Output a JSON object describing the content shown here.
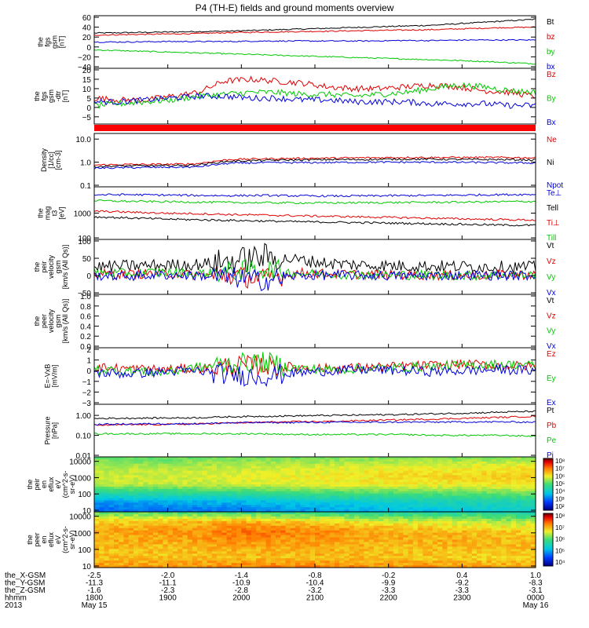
{
  "title": "P4 (TH-E) fields and ground moments overview",
  "time_axis": {
    "rows": [
      {
        "label": "the_X-GSM",
        "values": [
          "-2.5",
          "-2.0",
          "-1.4",
          "-0.8",
          "-0.2",
          "0.4",
          "1.0"
        ]
      },
      {
        "label": "the_Y-GSM",
        "values": [
          "-11.3",
          "-11.1",
          "-10.9",
          "-10.4",
          "-9.9",
          "-9.2",
          "-8.3"
        ]
      },
      {
        "label": "the_Z-GSM",
        "values": [
          "-1.6",
          "-2.3",
          "-2.8",
          "-3.2",
          "-3.3",
          "-3.3",
          "-3.1"
        ]
      },
      {
        "label": "hhmm",
        "values": [
          "1800",
          "1900",
          "2000",
          "2100",
          "2200",
          "2300",
          "0000"
        ]
      }
    ],
    "year": "2013",
    "date_start": "May 15",
    "date_end": "May 16"
  },
  "colors": {
    "black": "#000000",
    "red": "#e00000",
    "green": "#00c800",
    "blue": "#0000dc",
    "status_bar": "#ff0000"
  },
  "chart_data": [
    {
      "type": "line",
      "panel": "fgs-gsm",
      "ylabel": [
        "the",
        "fgs",
        "gsm",
        "[nT]"
      ],
      "ylim": [
        -40,
        60
      ],
      "scale": "linear",
      "ticks": [
        "60",
        "40",
        "20",
        "0",
        "−20",
        "−40"
      ],
      "tick_values": [
        60,
        40,
        20,
        0,
        -20,
        -40
      ],
      "series": [
        {
          "name": "Bt",
          "color": "#000000",
          "values": [
            28,
            29,
            30,
            31,
            32,
            34,
            36,
            38,
            40,
            42,
            44,
            48,
            52,
            56
          ]
        },
        {
          "name": "bz",
          "color": "#e00000",
          "values": [
            24,
            25,
            26,
            27,
            29,
            30,
            31,
            32,
            33,
            34,
            35,
            37,
            39,
            40
          ]
        },
        {
          "name": "by",
          "color": "#00c800",
          "values": [
            -6,
            -8,
            -10,
            -12,
            -14,
            -16,
            -18,
            -20,
            -22,
            -24,
            -26,
            -28,
            -31,
            -34
          ]
        },
        {
          "name": "bx",
          "color": "#0000dc",
          "values": [
            10,
            10,
            11,
            11,
            11,
            12,
            12,
            12,
            12,
            13,
            13,
            14,
            14,
            14
          ]
        }
      ]
    },
    {
      "type": "line",
      "panel": "fgs-gsm-detrended",
      "ylabel": [
        "the",
        "fgs",
        "gsm",
        "-dtr",
        "[nT]"
      ],
      "ylim": [
        -8,
        20
      ],
      "scale": "linear",
      "ticks": [
        "20",
        "15",
        "10",
        "5",
        "0",
        "−5"
      ],
      "tick_values": [
        20,
        15,
        10,
        5,
        0,
        -5
      ],
      "series": [
        {
          "name": "Bz",
          "color": "#e00000",
          "values": [
            5,
            4,
            4,
            6,
            8,
            14,
            15,
            14,
            13,
            11,
            10,
            10,
            11,
            12,
            11,
            9,
            8,
            6
          ]
        },
        {
          "name": "By",
          "color": "#00c800",
          "values": [
            1,
            2,
            3,
            4,
            6,
            7,
            8,
            8,
            7,
            7,
            6,
            7,
            8,
            10,
            12,
            11,
            9,
            8
          ]
        },
        {
          "name": "Bx",
          "color": "#0000dc",
          "values": [
            3,
            3,
            4,
            5,
            6,
            6,
            5,
            5,
            4,
            4,
            3,
            3,
            3,
            2,
            2,
            2,
            1,
            1
          ]
        }
      ]
    },
    {
      "type": "line",
      "panel": "density",
      "ylabel": [
        "Density",
        "[1/cc]",
        "[cm-3]"
      ],
      "ylim": [
        0.1,
        15
      ],
      "scale": "log",
      "ticks": [
        "10.0",
        "1.0",
        "0.1"
      ],
      "tick_values": [
        10,
        1,
        0.1
      ],
      "series": [
        {
          "name": "Ne",
          "color": "#e00000",
          "values": [
            0.75,
            0.8,
            0.8,
            0.85,
            1.3,
            1.4,
            1.45,
            1.5,
            1.55,
            1.6,
            1.6,
            1.6,
            1.6,
            1.55
          ]
        },
        {
          "name": "Ni",
          "color": "#000000",
          "values": [
            0.65,
            0.7,
            0.7,
            0.75,
            1.1,
            1.2,
            1.25,
            1.3,
            1.3,
            1.35,
            1.35,
            1.3,
            1.3,
            1.25
          ]
        },
        {
          "name": "Npot",
          "color": "#0000dc",
          "values": [
            0.55,
            0.58,
            0.6,
            0.62,
            0.9,
            0.95,
            0.95,
            0.97,
            1.0,
            1.0,
            1.0,
            0.98,
            0.95,
            0.92
          ]
        }
      ]
    },
    {
      "type": "line",
      "panel": "temperature",
      "ylabel": [
        "the",
        "mag",
        "t3",
        "[eV]"
      ],
      "ylim": [
        100,
        10000
      ],
      "scale": "log",
      "ticks": [
        "1000",
        "100"
      ],
      "tick_values": [
        1000,
        100
      ],
      "series": [
        {
          "name": "Te⊥",
          "color": "#0000dc",
          "values": [
            5500,
            5600,
            5400,
            5200,
            5100,
            5200,
            5000,
            4900,
            5000,
            5100,
            5200,
            5400,
            5600,
            5700
          ]
        },
        {
          "name": "Tell",
          "color": "#000000",
          "values": [
            700,
            640,
            580,
            540,
            510,
            480,
            450,
            430,
            410,
            390,
            370,
            350,
            330,
            320
          ]
        },
        {
          "name": "Ti⊥",
          "color": "#e00000",
          "values": [
            1200,
            1100,
            1000,
            950,
            880,
            830,
            780,
            740,
            700,
            660,
            620,
            580,
            550,
            520
          ]
        },
        {
          "name": "Till",
          "color": "#00c800",
          "values": [
            3200,
            3000,
            2900,
            2800,
            2700,
            2650,
            2600,
            2600,
            2650,
            2700,
            2750,
            2800,
            2900,
            3000
          ]
        }
      ]
    },
    {
      "type": "line",
      "panel": "peir-velocity",
      "ylabel": [
        "the",
        "peir",
        "velocity",
        "gsm",
        "[km/s (All Qs)]"
      ],
      "ylim": [
        -50,
        100
      ],
      "scale": "linear",
      "ticks": [
        "100",
        "50",
        "0",
        "−50"
      ],
      "tick_values": [
        100,
        50,
        0,
        -50
      ],
      "series": [
        {
          "name": "Vt",
          "color": "#000000",
          "values": [
            25,
            28,
            30,
            32,
            40,
            55,
            45,
            35,
            30,
            28,
            27,
            26,
            25,
            24
          ]
        },
        {
          "name": "Vz",
          "color": "#e00000",
          "values": [
            5,
            4,
            6,
            2,
            0,
            -10,
            8,
            5,
            3,
            2,
            1,
            0,
            2,
            3
          ]
        },
        {
          "name": "Vy",
          "color": "#00c800",
          "values": [
            8,
            6,
            10,
            5,
            12,
            20,
            6,
            4,
            3,
            2,
            1,
            0,
            1,
            2
          ]
        },
        {
          "name": "Vx",
          "color": "#0000dc",
          "values": [
            0,
            -2,
            2,
            0,
            -5,
            -15,
            0,
            1,
            0,
            -1,
            0,
            1,
            0,
            0
          ]
        }
      ]
    },
    {
      "type": "line",
      "panel": "peer-velocity",
      "ylabel": [
        "the",
        "peer",
        "velocity",
        "gsm",
        "[km/s (All Qs)]"
      ],
      "ylim": [
        0,
        1
      ],
      "scale": "linear",
      "ticks": [
        "1.0",
        "0.8",
        "0.6",
        "0.4",
        "0.2",
        "0.0"
      ],
      "tick_values": [
        1.0,
        0.8,
        0.6,
        0.4,
        0.2,
        0.0
      ],
      "series": [
        {
          "name": "Vt",
          "color": "#000000",
          "values": []
        },
        {
          "name": "Vz",
          "color": "#e00000",
          "values": []
        },
        {
          "name": "Vy",
          "color": "#00c800",
          "values": []
        },
        {
          "name": "Vx",
          "color": "#0000dc",
          "values": []
        }
      ]
    },
    {
      "type": "line",
      "panel": "electric-field",
      "ylabel": [
        "E=-VxB",
        "[mV/m]"
      ],
      "ylim": [
        -3,
        2
      ],
      "scale": "linear",
      "ticks": [
        "2",
        "1",
        "0",
        "−1",
        "−2",
        "−3"
      ],
      "tick_values": [
        2,
        1,
        0,
        -1,
        -2,
        -3
      ],
      "series": [
        {
          "name": "Ez",
          "color": "#e00000",
          "values": [
            0.3,
            0.2,
            0.1,
            0.2,
            0.4,
            0.5,
            0.3,
            0.2,
            0.3,
            0.4,
            0.5,
            0.6,
            0.5,
            0.4
          ]
        },
        {
          "name": "Ey",
          "color": "#00c800",
          "values": [
            0.1,
            0.0,
            -0.2,
            0.3,
            0.6,
            0.8,
            0.2,
            0.1,
            0.2,
            0.3,
            0.4,
            0.5,
            0.6,
            0.5
          ]
        },
        {
          "name": "Ex",
          "color": "#0000dc",
          "values": [
            -0.2,
            -0.3,
            -0.1,
            0.0,
            -0.4,
            -0.5,
            -0.2,
            0.0,
            0.1,
            0.0,
            -0.1,
            0.0,
            0.1,
            0.0
          ]
        }
      ]
    },
    {
      "type": "line",
      "panel": "pressure",
      "ylabel": [
        "Pressure",
        "[nPa]"
      ],
      "ylim": [
        0.01,
        3
      ],
      "scale": "log",
      "ticks": [
        "1.00",
        "0.10",
        "0.01"
      ],
      "tick_values": [
        1,
        0.1,
        0.01
      ],
      "series": [
        {
          "name": "Pt",
          "color": "#000000",
          "values": [
            0.7,
            0.72,
            0.74,
            0.76,
            0.85,
            0.9,
            0.95,
            1.0,
            1.05,
            1.1,
            1.2,
            1.3,
            1.45,
            1.6
          ]
        },
        {
          "name": "Pb",
          "color": "#e00000",
          "values": [
            0.32,
            0.34,
            0.35,
            0.37,
            0.42,
            0.45,
            0.48,
            0.5,
            0.55,
            0.6,
            0.65,
            0.72,
            0.8,
            0.9
          ]
        },
        {
          "name": "Pe",
          "color": "#00c800",
          "values": [
            0.12,
            0.12,
            0.12,
            0.12,
            0.12,
            0.12,
            0.11,
            0.11,
            0.11,
            0.11,
            0.1,
            0.1,
            0.1,
            0.09
          ]
        },
        {
          "name": "Pi",
          "color": "#0000dc",
          "values": [
            0.35,
            0.37,
            0.38,
            0.38,
            0.42,
            0.44,
            0.44,
            0.45,
            0.45,
            0.46,
            0.46,
            0.47,
            0.47,
            0.46
          ]
        }
      ]
    },
    {
      "type": "heatmap",
      "panel": "peir-energy-flux",
      "ylabel": [
        "the",
        "peir",
        "en",
        "eflux",
        "eV",
        "(cm^2-s-",
        "sr-eV)"
      ],
      "ylim": [
        10,
        15000
      ],
      "scale": "log",
      "ticks": [
        "10000",
        "1000",
        "100",
        "10"
      ],
      "tick_values": [
        10000,
        1000,
        100,
        10
      ],
      "colorbar_ticks": [
        "10⁸",
        "10⁷",
        "10⁶",
        "10⁵",
        "10⁴",
        "10³",
        "10²"
      ],
      "description_values": {
        "energy_bins_eV": [
          10000,
          3000,
          1000,
          300,
          100,
          30,
          10
        ],
        "log10_flux_by_time": [
          [
            5.2,
            5.6,
            5.8,
            5.7,
            4.6,
            3.6,
            3.2
          ],
          [
            5.2,
            5.6,
            5.8,
            5.7,
            4.7,
            3.7,
            3.3
          ],
          [
            5.3,
            5.7,
            5.9,
            5.8,
            4.8,
            3.8,
            3.4
          ],
          [
            5.3,
            5.8,
            6.0,
            5.9,
            5.0,
            4.0,
            3.6
          ],
          [
            5.4,
            5.9,
            6.1,
            6.0,
            5.1,
            4.2,
            3.8
          ],
          [
            5.4,
            5.9,
            6.2,
            6.0,
            5.2,
            4.4,
            4.0
          ],
          [
            5.5,
            6.0,
            6.3,
            6.1,
            5.3,
            4.5,
            4.2
          ]
        ]
      }
    },
    {
      "type": "heatmap",
      "panel": "peer-energy-flux",
      "ylabel": [
        "the",
        "peer",
        "en",
        "eflux",
        "eV",
        "(cm^2-s-",
        "sr-eV)"
      ],
      "ylim": [
        10,
        15000
      ],
      "scale": "log",
      "ticks": [
        "10000",
        "1000",
        "100",
        "10"
      ],
      "tick_values": [
        10000,
        1000,
        100,
        10
      ],
      "colorbar_ticks": [
        "10⁸",
        "10⁷",
        "10⁶",
        "10⁵",
        "10⁴"
      ],
      "description_values": {
        "energy_bins_eV": [
          10000,
          3000,
          1000,
          300,
          100,
          30,
          10
        ],
        "log10_flux_by_time": [
          [
            6.2,
            6.8,
            7.0,
            7.0,
            6.9,
            6.9,
            7.1
          ],
          [
            6.1,
            6.9,
            7.1,
            7.0,
            6.9,
            6.9,
            7.1
          ],
          [
            6.0,
            7.0,
            7.3,
            7.2,
            7.0,
            6.9,
            7.2
          ],
          [
            5.9,
            6.8,
            7.2,
            7.1,
            7.0,
            6.9,
            7.2
          ],
          [
            5.8,
            6.6,
            7.0,
            7.0,
            6.9,
            6.9,
            7.1
          ],
          [
            5.8,
            6.5,
            6.9,
            7.0,
            6.9,
            6.8,
            7.1
          ],
          [
            5.7,
            6.4,
            6.8,
            6.9,
            6.9,
            6.8,
            7.0
          ]
        ]
      }
    }
  ]
}
